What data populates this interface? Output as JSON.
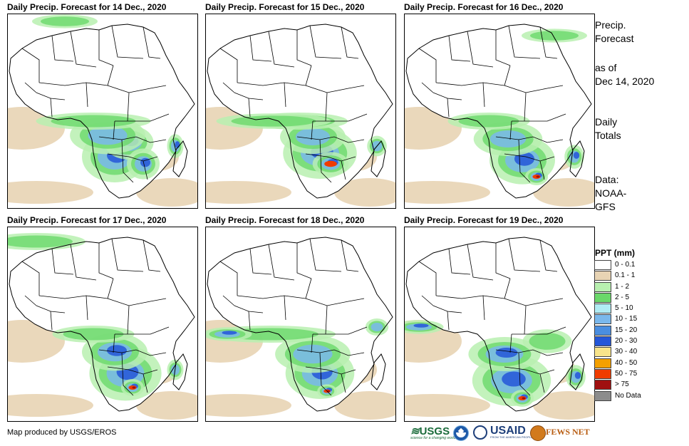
{
  "panels": [
    {
      "title": "Daily Precip. Forecast for 14 Dec., 2020"
    },
    {
      "title": "Daily Precip. Forecast for 15 Dec., 2020"
    },
    {
      "title": "Daily Precip. Forecast for 16 Dec., 2020"
    },
    {
      "title": "Daily Precip. Forecast for 17 Dec., 2020"
    },
    {
      "title": "Daily Precip. Forecast for 18 Dec., 2020"
    },
    {
      "title": "Daily Precip. Forecast for 19 Dec., 2020"
    }
  ],
  "sidebar": {
    "title_line1": "Precip.",
    "title_line2": "Forecast",
    "asof_line1": "as of",
    "asof_line2": "Dec 14, 2020",
    "totals_line1": "Daily",
    "totals_line2": "Totals",
    "data_line1": "Data:",
    "data_line2": "NOAA-",
    "data_line3": "GFS"
  },
  "legend": {
    "title": "PPT (mm)",
    "items": [
      {
        "label": "0 - 0.1",
        "color": "#ffffff"
      },
      {
        "label": "0.1 - 1",
        "color": "#e8d4b4"
      },
      {
        "label": "1 - 2",
        "color": "#b8f0b0"
      },
      {
        "label": "2 - 5",
        "color": "#6ad86a"
      },
      {
        "label": "5 - 10",
        "color": "#b0ecf4"
      },
      {
        "label": "10 - 15",
        "color": "#7ab8ec"
      },
      {
        "label": "15 - 20",
        "color": "#4a8ee0"
      },
      {
        "label": "20 - 30",
        "color": "#2456d8"
      },
      {
        "label": "30 - 40",
        "color": "#f8e48a"
      },
      {
        "label": "40 - 50",
        "color": "#f4a000"
      },
      {
        "label": "50 - 75",
        "color": "#f03c00"
      },
      {
        "label": "> 75",
        "color": "#a01010"
      },
      {
        "label": "No Data",
        "color": "#8c8c8c"
      }
    ]
  },
  "footer": {
    "credit": "Map produced by USGS/EROS",
    "logo_usgs": "USGS",
    "logo_usgs_tagline": "science for a changing world",
    "logo_usaid": "USAID",
    "logo_usaid_tagline": "FROM THE AMERICAN PEOPLE",
    "logo_fewsnet": "FEWS NET"
  }
}
